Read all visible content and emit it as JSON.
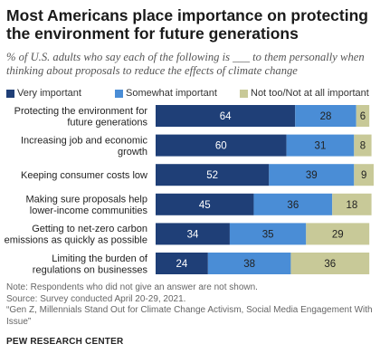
{
  "title": "Most Americans place importance on protecting the environment for future generations",
  "subtitle": "% of U.S. adults who say each of the following is ___ to them personally when thinking about proposals to reduce the effects of climate change",
  "notes": [
    "Note: Respondents who did not give an answer are not shown.",
    "Source: Survey conducted April 20-29, 2021.",
    "“Gen Z, Millennials Stand Out for Climate Change Activism, Social Media Engagement With Issue”"
  ],
  "source_org": "PEW RESEARCH CENTER",
  "colors": {
    "very": "#1f3f77",
    "somewhat": "#4a8dd6",
    "nottoo": "#c8c998"
  },
  "chart_data": {
    "type": "bar",
    "orientation": "horizontal",
    "stacked": true,
    "categories": [
      [
        "Protecting the environment for",
        "future generations"
      ],
      [
        "Increasing job and economic",
        "growth"
      ],
      [
        "Keeping consumer costs low"
      ],
      [
        "Making sure proposals help",
        "lower-income communities"
      ],
      [
        "Getting to net-zero carbon",
        "emissions as quickly as possible"
      ],
      [
        "Limiting the burden of",
        "regulations on businesses"
      ]
    ],
    "series": [
      {
        "name": "Very important",
        "values": [
          64,
          60,
          52,
          45,
          34,
          24
        ]
      },
      {
        "name": "Somewhat important",
        "values": [
          28,
          31,
          39,
          36,
          35,
          38
        ]
      },
      {
        "name": "Not too/Not at all important",
        "values": [
          6,
          8,
          9,
          18,
          29,
          36
        ]
      }
    ],
    "xlim": [
      0,
      100
    ],
    "legend_position": "top"
  }
}
